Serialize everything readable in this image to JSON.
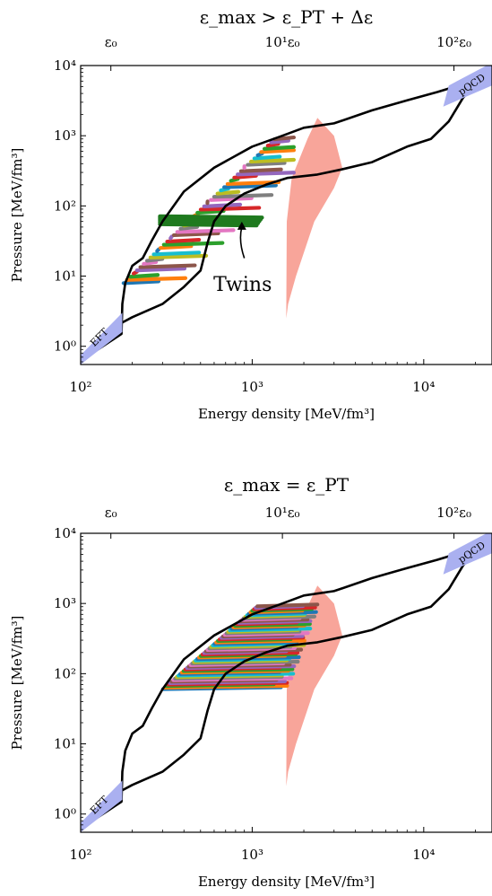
{
  "chart_data": [
    {
      "type": "line",
      "title": "ε_max > ε_PT + Δε",
      "xlabel": "Energy density [MeV/fm³]",
      "ylabel": "Pressure [MeV/fm³]",
      "xscale": "log",
      "yscale": "log",
      "xlim": [
        100,
        25000
      ],
      "ylim": [
        0.55,
        10000
      ],
      "x_ticks": [
        {
          "value": 100,
          "label": "10²"
        },
        {
          "value": 1000,
          "label": "10³"
        },
        {
          "value": 10000,
          "label": "10⁴"
        }
      ],
      "y_ticks": [
        {
          "value": 1,
          "label": "10⁰"
        },
        {
          "value": 10,
          "label": "10¹"
        },
        {
          "value": 100,
          "label": "10²"
        },
        {
          "value": 1000,
          "label": "10³"
        },
        {
          "value": 10000,
          "label": "10⁴"
        }
      ],
      "top_ticks": [
        {
          "value": 150,
          "label": "ε₀"
        },
        {
          "value": 1500,
          "label": "10¹ε₀"
        },
        {
          "value": 15000,
          "label": "10²ε₀"
        }
      ],
      "bands": [
        {
          "label": "EFT",
          "color": "#aab0f0"
        },
        {
          "label": "pQCD",
          "color": "#aab0f0"
        }
      ],
      "annotations": [
        {
          "text": "Twins",
          "color": "#000000"
        }
      ],
      "envelope_color": "#000000",
      "pt_region_color": "#f8a59a",
      "twins_color": "#1f7a1f"
    },
    {
      "type": "line",
      "title": "ε_max = ε_PT",
      "xlabel": "Energy density [MeV/fm³]",
      "ylabel": "Pressure [MeV/fm³]",
      "xscale": "log",
      "yscale": "log",
      "xlim": [
        100,
        25000
      ],
      "ylim": [
        0.55,
        10000
      ],
      "x_ticks": [
        {
          "value": 100,
          "label": "10²"
        },
        {
          "value": 1000,
          "label": "10³"
        },
        {
          "value": 10000,
          "label": "10⁴"
        }
      ],
      "y_ticks": [
        {
          "value": 1,
          "label": "10⁰"
        },
        {
          "value": 10,
          "label": "10¹"
        },
        {
          "value": 100,
          "label": "10²"
        },
        {
          "value": 1000,
          "label": "10³"
        },
        {
          "value": 10000,
          "label": "10⁴"
        }
      ],
      "top_ticks": [
        {
          "value": 150,
          "label": "ε₀"
        },
        {
          "value": 1500,
          "label": "10¹ε₀"
        },
        {
          "value": 15000,
          "label": "10²ε₀"
        }
      ],
      "bands": [
        {
          "label": "EFT",
          "color": "#aab0f0"
        },
        {
          "label": "pQCD",
          "color": "#aab0f0"
        }
      ],
      "annotations": [],
      "envelope_color": "#000000",
      "pt_region_color": "#f8a59a"
    }
  ]
}
